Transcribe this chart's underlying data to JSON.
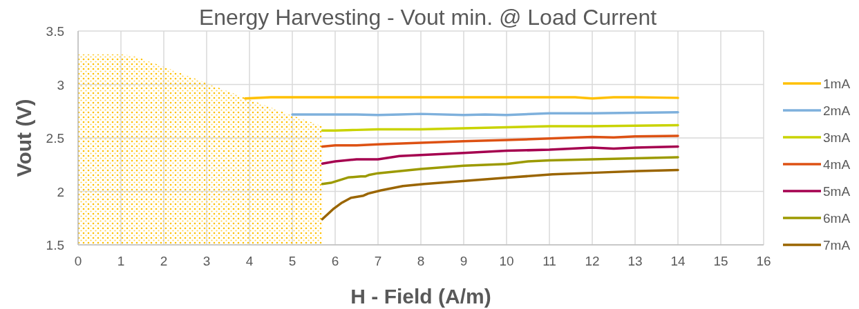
{
  "chart_data": {
    "type": "line",
    "title": "Energy Harvesting - Vout min. @ Load Current",
    "xlabel": "H - Field (A/m)",
    "ylabel": "Vout (V)",
    "xlim": [
      0,
      16
    ],
    "xticks": [
      0,
      1,
      2,
      3,
      4,
      5,
      6,
      7,
      8,
      9,
      10,
      11,
      12,
      13,
      14,
      15,
      16
    ],
    "ylim": [
      1.5,
      3.5
    ],
    "yticks": [
      1.5,
      2,
      2.5,
      3,
      3.5
    ],
    "grid": true,
    "legend": "right",
    "series": [
      {
        "type": "area",
        "color": "#ffc000",
        "x": [
          0,
          1,
          1.3,
          2.5,
          3.9,
          5,
          5.7
        ],
        "values": [
          3.28,
          3.28,
          3.27,
          3.09,
          2.875,
          2.71,
          2.61
        ]
      },
      {
        "name": "1mA",
        "color": "#ffc000",
        "x": [
          3.9,
          4.5,
          5,
          6,
          7,
          8,
          9,
          10,
          11,
          11.6,
          12,
          12.5,
          13,
          14
        ],
        "values": [
          2.87,
          2.88,
          2.88,
          2.88,
          2.88,
          2.88,
          2.88,
          2.88,
          2.88,
          2.88,
          2.87,
          2.88,
          2.88,
          2.875
        ]
      },
      {
        "name": "2mA",
        "color": "#7eb0dc",
        "x": [
          5,
          5.5,
          6,
          6.5,
          7,
          7.5,
          8,
          9,
          9.5,
          10,
          11,
          12,
          13,
          14
        ],
        "values": [
          2.72,
          2.72,
          2.72,
          2.72,
          2.715,
          2.72,
          2.725,
          2.715,
          2.72,
          2.715,
          2.73,
          2.73,
          2.735,
          2.74
        ]
      },
      {
        "name": "3mA",
        "color": "#c9d300",
        "x": [
          5.7,
          6,
          6.5,
          7,
          8,
          9,
          10,
          11,
          12,
          13,
          14
        ],
        "values": [
          2.57,
          2.57,
          2.575,
          2.58,
          2.58,
          2.59,
          2.6,
          2.61,
          2.61,
          2.615,
          2.62
        ]
      },
      {
        "name": "4mA",
        "color": "#dd5113",
        "x": [
          5.7,
          6,
          6.5,
          7,
          8,
          9,
          10,
          11,
          12,
          12.5,
          13,
          14
        ],
        "values": [
          2.42,
          2.43,
          2.43,
          2.44,
          2.455,
          2.47,
          2.48,
          2.495,
          2.51,
          2.505,
          2.515,
          2.52
        ]
      },
      {
        "name": "5mA",
        "color": "#a5004f",
        "x": [
          5.7,
          6,
          6.5,
          7,
          7.5,
          8,
          9,
          10,
          11,
          12,
          12.5,
          13,
          14
        ],
        "values": [
          2.26,
          2.28,
          2.3,
          2.3,
          2.33,
          2.34,
          2.36,
          2.38,
          2.39,
          2.41,
          2.4,
          2.41,
          2.42
        ]
      },
      {
        "name": "6mA",
        "color": "#9c9a00",
        "x": [
          5.7,
          5.9,
          6.3,
          6.6,
          6.7,
          6.8,
          7,
          8,
          9,
          10,
          10.5,
          11,
          12,
          13,
          14
        ],
        "values": [
          2.07,
          2.08,
          2.13,
          2.14,
          2.14,
          2.155,
          2.17,
          2.21,
          2.24,
          2.256,
          2.28,
          2.29,
          2.3,
          2.31,
          2.32
        ]
      },
      {
        "name": "7mA",
        "color": "#9a6500",
        "x": [
          5.7,
          5.97,
          6.14,
          6.37,
          6.66,
          6.77,
          7.07,
          7.58,
          8.08,
          9.08,
          10.08,
          11.07,
          12.07,
          13.08,
          14
        ],
        "values": [
          1.74,
          1.84,
          1.89,
          1.94,
          1.96,
          1.98,
          2.01,
          2.05,
          2.07,
          2.1,
          2.13,
          2.16,
          2.175,
          2.19,
          2.2
        ]
      }
    ]
  }
}
